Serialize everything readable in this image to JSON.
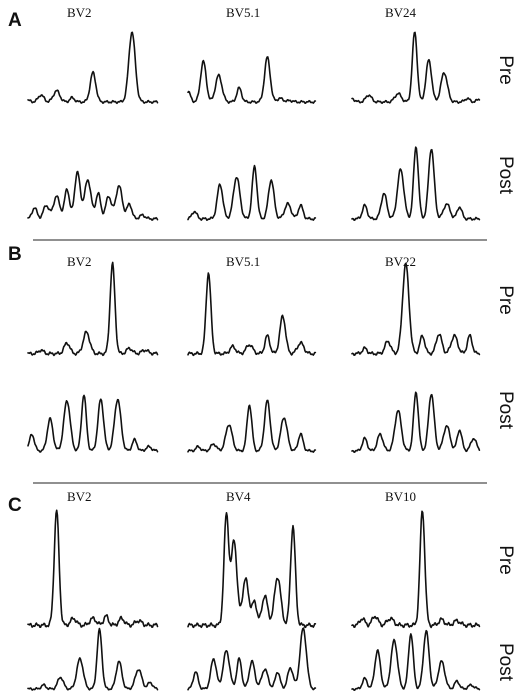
{
  "panels": [
    {
      "letter": "A",
      "labels": [
        "BV2",
        "BV5.1",
        "BV24"
      ],
      "rows": [
        {
          "label": "Pre",
          "traces": [
            [
              [
                0.0,
                0.02
              ],
              [
                0.1,
                0.1
              ],
              [
                0.22,
                0.16
              ],
              [
                0.34,
                0.06
              ],
              [
                0.5,
                0.42
              ],
              [
                0.8,
                1.0
              ],
              [
                0.86,
                0.0
              ]
            ],
            [
              [
                0.0,
                0.15
              ],
              [
                0.12,
                0.58
              ],
              [
                0.24,
                0.38
              ],
              [
                0.4,
                0.2
              ],
              [
                0.62,
                0.64
              ],
              [
                0.72,
                0.05
              ],
              [
                0.8,
                0.02
              ]
            ],
            [
              [
                0.0,
                0.05
              ],
              [
                0.13,
                0.1
              ],
              [
                0.36,
                0.12
              ],
              [
                0.49,
                1.0
              ],
              [
                0.6,
                0.6
              ],
              [
                0.72,
                0.42
              ],
              [
                0.9,
                0.05
              ],
              [
                1.0,
                0.04
              ]
            ]
          ]
        },
        {
          "label": "Post",
          "traces": [
            [
              [
                0.05,
                0.15
              ],
              [
                0.14,
                0.18
              ],
              [
                0.22,
                0.3
              ],
              [
                0.3,
                0.4
              ],
              [
                0.38,
                0.62
              ],
              [
                0.46,
                0.52
              ],
              [
                0.54,
                0.34
              ],
              [
                0.62,
                0.3
              ],
              [
                0.7,
                0.44
              ],
              [
                0.78,
                0.2
              ],
              [
                0.88,
                0.05
              ]
            ],
            [
              [
                0.05,
                0.1
              ],
              [
                0.25,
                0.46
              ],
              [
                0.38,
                0.56
              ],
              [
                0.52,
                0.7
              ],
              [
                0.65,
                0.52
              ],
              [
                0.78,
                0.2
              ],
              [
                0.88,
                0.18
              ]
            ],
            [
              [
                0.1,
                0.18
              ],
              [
                0.25,
                0.34
              ],
              [
                0.38,
                0.66
              ],
              [
                0.5,
                0.96
              ],
              [
                0.62,
                0.94
              ],
              [
                0.74,
                0.2
              ],
              [
                0.84,
                0.16
              ]
            ]
          ]
        }
      ]
    },
    {
      "letter": "B",
      "labels": [
        "BV2",
        "BV5.1",
        "BV22"
      ],
      "rows": [
        {
          "label": "Pre",
          "traces": [
            [
              [
                0.1,
                0.04
              ],
              [
                0.3,
                0.12
              ],
              [
                0.45,
                0.24
              ],
              [
                0.65,
                1.0
              ],
              [
                0.78,
                0.06
              ],
              [
                0.9,
                0.04
              ]
            ],
            [
              [
                0.16,
                0.9
              ],
              [
                0.35,
                0.08
              ],
              [
                0.48,
                0.1
              ],
              [
                0.62,
                0.2
              ],
              [
                0.74,
                0.42
              ],
              [
                0.88,
                0.12
              ]
            ],
            [
              [
                0.1,
                0.06
              ],
              [
                0.28,
                0.14
              ],
              [
                0.42,
                1.0
              ],
              [
                0.55,
                0.2
              ],
              [
                0.68,
                0.22
              ],
              [
                0.8,
                0.2
              ],
              [
                0.92,
                0.2
              ]
            ]
          ]
        },
        {
          "label": "Post",
          "traces": [
            [
              [
                0.03,
                0.24
              ],
              [
                0.17,
                0.46
              ],
              [
                0.3,
                0.72
              ],
              [
                0.43,
                0.8
              ],
              [
                0.56,
                0.74
              ],
              [
                0.69,
                0.74
              ],
              [
                0.82,
                0.16
              ],
              [
                0.93,
                0.06
              ]
            ],
            [
              [
                0.08,
                0.06
              ],
              [
                0.2,
                0.1
              ],
              [
                0.32,
                0.38
              ],
              [
                0.48,
                0.66
              ],
              [
                0.62,
                0.72
              ],
              [
                0.75,
                0.48
              ],
              [
                0.88,
                0.24
              ]
            ],
            [
              [
                0.1,
                0.18
              ],
              [
                0.22,
                0.24
              ],
              [
                0.36,
                0.58
              ],
              [
                0.5,
                0.84
              ],
              [
                0.62,
                0.82
              ],
              [
                0.74,
                0.36
              ],
              [
                0.84,
                0.3
              ],
              [
                0.95,
                0.18
              ]
            ]
          ]
        }
      ]
    },
    {
      "letter": "C",
      "labels": [
        "BV2",
        "BV4",
        "BV10"
      ],
      "rows": [
        {
          "label": "Pre",
          "traces": [
            [
              [
                0.22,
                1.0
              ],
              [
                0.35,
                0.06
              ],
              [
                0.5,
                0.06
              ],
              [
                0.6,
                0.08
              ],
              [
                0.72,
                0.06
              ],
              [
                0.85,
                0.04
              ]
            ],
            [
              [
                0.3,
                0.96
              ],
              [
                0.36,
                0.74
              ],
              [
                0.45,
                0.4
              ],
              [
                0.52,
                0.2
              ],
              [
                0.6,
                0.26
              ],
              [
                0.7,
                0.42
              ],
              [
                0.82,
                0.86
              ]
            ],
            [
              [
                0.08,
                0.06
              ],
              [
                0.18,
                0.08
              ],
              [
                0.3,
                0.06
              ],
              [
                0.55,
                1.0
              ],
              [
                0.7,
                0.05
              ],
              [
                0.82,
                0.04
              ]
            ]
          ]
        },
        {
          "label": "Post",
          "traces": [
            [
              [
                0.12,
                0.06
              ],
              [
                0.25,
                0.18
              ],
              [
                0.4,
                0.46
              ],
              [
                0.55,
                0.9
              ],
              [
                0.7,
                0.42
              ],
              [
                0.85,
                0.3
              ],
              [
                0.94,
                0.1
              ]
            ],
            [
              [
                0.06,
                0.26
              ],
              [
                0.2,
                0.46
              ],
              [
                0.3,
                0.58
              ],
              [
                0.4,
                0.46
              ],
              [
                0.5,
                0.42
              ],
              [
                0.6,
                0.3
              ],
              [
                0.7,
                0.26
              ],
              [
                0.8,
                0.32
              ],
              [
                0.9,
                0.92
              ]
            ],
            [
              [
                0.1,
                0.16
              ],
              [
                0.2,
                0.58
              ],
              [
                0.33,
                0.74
              ],
              [
                0.46,
                0.84
              ],
              [
                0.58,
                0.88
              ],
              [
                0.7,
                0.42
              ],
              [
                0.82,
                0.12
              ],
              [
                0.93,
                0.06
              ]
            ]
          ]
        }
      ]
    }
  ]
}
